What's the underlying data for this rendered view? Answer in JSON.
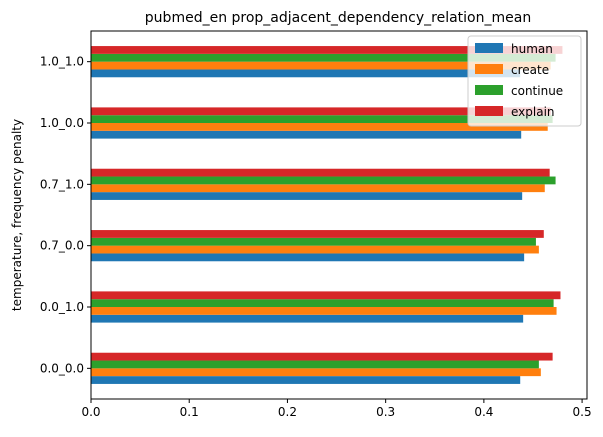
{
  "chart_data": {
    "type": "bar",
    "orientation": "horizontal",
    "title": "pubmed_en prop_adjacent_dependency_relation_mean",
    "xlabel": "",
    "ylabel": "temperature, frequency penalty",
    "xlim": [
      0.0,
      0.505
    ],
    "xticks": [
      "0.0",
      "0.1",
      "0.2",
      "0.3",
      "0.4",
      "0.5"
    ],
    "categories": [
      "0.0_0.0",
      "0.0_1.0",
      "0.7_0.0",
      "0.7_1.0",
      "1.0_0.0",
      "1.0_1.0"
    ],
    "series": [
      {
        "name": "human",
        "color": "#1f77b4",
        "values": [
          0.437,
          0.44,
          0.441,
          0.439,
          0.438,
          0.437
        ]
      },
      {
        "name": "create",
        "color": "#ff7f0e",
        "values": [
          0.458,
          0.474,
          0.456,
          0.462,
          0.465,
          0.468
        ]
      },
      {
        "name": "continue",
        "color": "#2ca02c",
        "values": [
          0.456,
          0.471,
          0.453,
          0.473,
          0.47,
          0.473
        ]
      },
      {
        "name": "explain",
        "color": "#d62728",
        "values": [
          0.47,
          0.478,
          0.461,
          0.467,
          0.468,
          0.48
        ]
      }
    ],
    "legend": {
      "placement": "top-right"
    },
    "grid": false
  }
}
